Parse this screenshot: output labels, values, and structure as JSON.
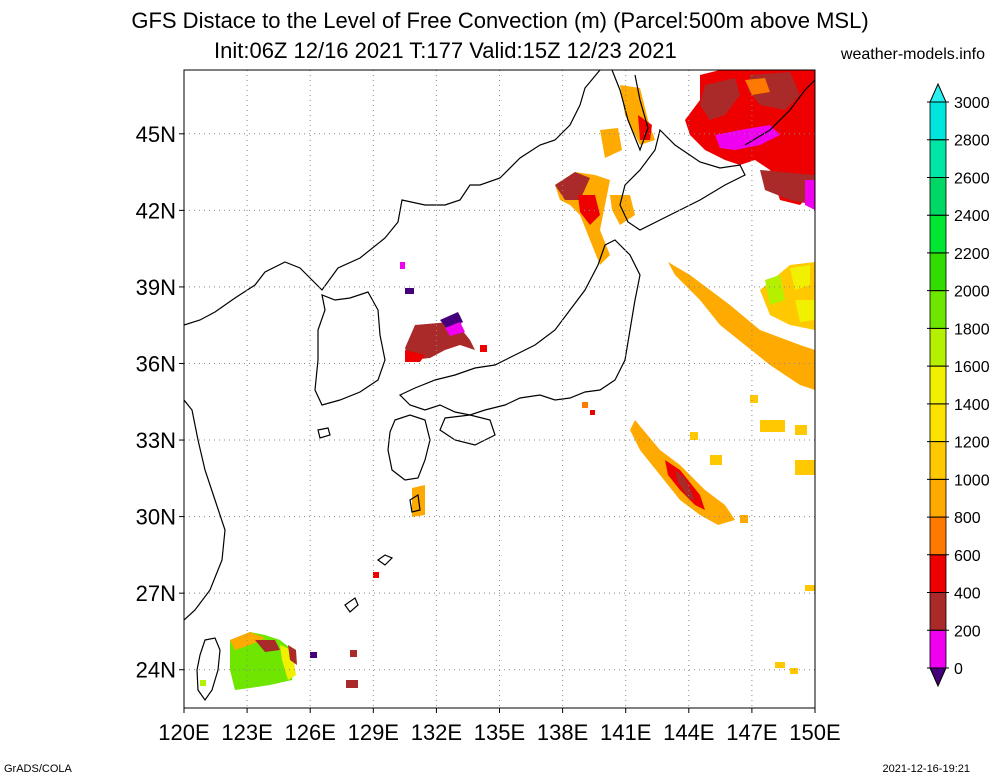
{
  "title": {
    "line1": "GFS Distace to the Level of Free Convection (m) (Parcel:500m above MSL)",
    "line2": "Init:06Z 12/16 2021 T:177 Valid:15Z 12/23 2021",
    "site": "weather-models.info"
  },
  "footer": {
    "left": "GrADS/COLA",
    "right": "2021-12-16-19:21"
  },
  "map": {
    "lon_range": [
      120,
      150
    ],
    "lat_range": [
      22.5,
      47.5
    ],
    "lon_ticks": [
      "120E",
      "123E",
      "126E",
      "129E",
      "132E",
      "135E",
      "138E",
      "141E",
      "144E",
      "147E",
      "150E"
    ],
    "lat_ticks": [
      "24N",
      "27N",
      "30N",
      "33N",
      "36N",
      "39N",
      "42N",
      "45N"
    ],
    "grid": true
  },
  "colorbar": {
    "labels": [
      "0",
      "200",
      "400",
      "600",
      "800",
      "1000",
      "1200",
      "1400",
      "1600",
      "1800",
      "2000",
      "2200",
      "2400",
      "2600",
      "2800",
      "3000"
    ],
    "colors": [
      "#44007a",
      "#f000f0",
      "#aa2a2a",
      "#ee0000",
      "#ff7800",
      "#ffaa00",
      "#ffc800",
      "#ffe300",
      "#f0f000",
      "#b4f000",
      "#6ee600",
      "#32dc00",
      "#00e632",
      "#00d866",
      "#00e6a6",
      "#00e6dc"
    ],
    "top_arrow": "#28f0f0",
    "bottom_arrow": "#44007a"
  }
}
